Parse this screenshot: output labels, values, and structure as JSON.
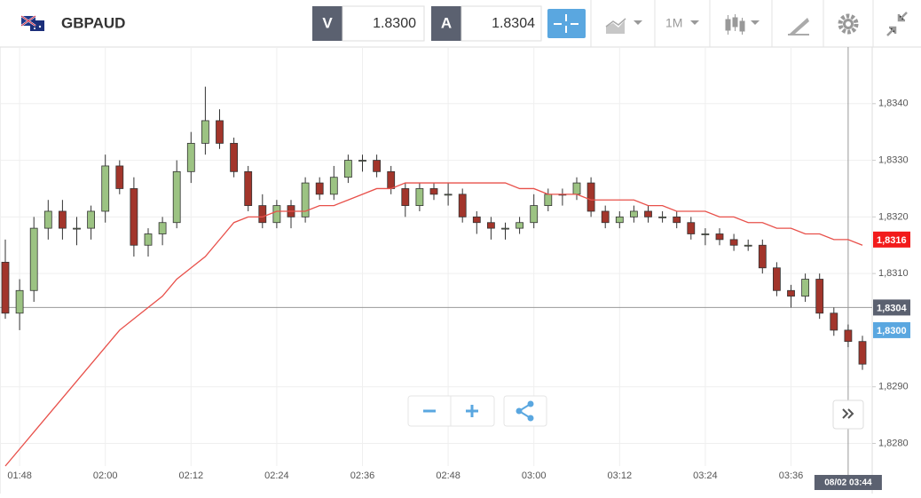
{
  "toolbar": {
    "symbol": "GBPAUD",
    "bid_label": "V",
    "bid": "1.8300",
    "ask_label": "A",
    "ask": "1.8304",
    "interval": "1M"
  },
  "chart_data": {
    "type": "candlestick",
    "categories": [
      null,
      "01:48",
      null,
      null,
      null,
      null,
      null,
      "02:00",
      null,
      null,
      null,
      null,
      null,
      "02:12",
      null,
      null,
      null,
      null,
      null,
      "02:24",
      null,
      null,
      null,
      null,
      null,
      "02:36",
      null,
      null,
      null,
      null,
      null,
      "02:48",
      null,
      null,
      null,
      null,
      null,
      "03:00",
      null,
      null,
      null,
      null,
      null,
      "03:12",
      null,
      null,
      null,
      null,
      null,
      "03:24",
      null,
      null,
      null,
      null,
      null,
      "03:36",
      null,
      null,
      null,
      null,
      null
    ],
    "open": [
      1.8312,
      1.8303,
      1.8307,
      1.8318,
      1.8321,
      1.8318,
      1.8318,
      1.8321,
      1.8329,
      1.8325,
      1.8315,
      1.8317,
      1.8319,
      1.8328,
      1.8333,
      1.8337,
      1.8333,
      1.8328,
      1.8322,
      1.8319,
      1.8322,
      1.832,
      1.8326,
      1.8324,
      1.8327,
      1.833,
      1.833,
      1.8328,
      1.8325,
      1.8322,
      1.8325,
      1.8324,
      1.8324,
      1.832,
      1.8319,
      1.8318,
      1.8318,
      1.8319,
      1.8322,
      1.8324,
      1.8324,
      1.8326,
      1.8321,
      1.8319,
      1.832,
      1.8321,
      1.832,
      1.832,
      1.8319,
      1.8317,
      1.8317,
      1.8316,
      1.8315,
      1.8315,
      1.8311,
      1.8307,
      1.8306,
      1.8309,
      1.8303,
      1.83,
      1.8298
    ],
    "high": [
      1.8316,
      1.8309,
      1.832,
      1.8323,
      1.8323,
      1.832,
      1.8322,
      1.8331,
      1.833,
      1.8327,
      1.8318,
      1.832,
      1.833,
      1.8335,
      1.8343,
      1.8339,
      1.8334,
      1.8329,
      1.8324,
      1.8323,
      1.8323,
      1.8327,
      1.8327,
      1.8329,
      1.8331,
      1.8331,
      1.8331,
      1.8329,
      1.8326,
      1.8326,
      1.8326,
      1.8326,
      1.8325,
      1.8321,
      1.832,
      1.8319,
      1.832,
      1.8324,
      1.8325,
      1.8325,
      1.8327,
      1.8327,
      1.8322,
      1.8321,
      1.8322,
      1.8322,
      1.8321,
      1.8321,
      1.832,
      1.8318,
      1.8318,
      1.8317,
      1.8316,
      1.8316,
      1.8312,
      1.8308,
      1.831,
      1.831,
      1.8304,
      1.8301,
      1.8299
    ],
    "low": [
      1.8302,
      1.83,
      1.8305,
      1.8316,
      1.8316,
      1.8315,
      1.8316,
      1.8319,
      1.8324,
      1.8313,
      1.8313,
      1.8315,
      1.8318,
      1.8326,
      1.8331,
      1.8332,
      1.8327,
      1.8321,
      1.8318,
      1.8318,
      1.8318,
      1.8319,
      1.8323,
      1.8323,
      1.8326,
      1.8328,
      1.8327,
      1.8324,
      1.832,
      1.8321,
      1.8323,
      1.8322,
      1.8319,
      1.8317,
      1.8316,
      1.8316,
      1.8317,
      1.8318,
      1.8321,
      1.8322,
      1.8323,
      1.832,
      1.8318,
      1.8318,
      1.8319,
      1.8319,
      1.8319,
      1.8318,
      1.8316,
      1.8315,
      1.8315,
      1.8314,
      1.8314,
      1.831,
      1.8306,
      1.8304,
      1.8305,
      1.8302,
      1.8299,
      1.8297,
      1.8293
    ],
    "close": [
      1.8303,
      1.8307,
      1.8318,
      1.8321,
      1.8318,
      1.8318,
      1.8321,
      1.8329,
      1.8325,
      1.8315,
      1.8317,
      1.8319,
      1.8328,
      1.8333,
      1.8337,
      1.8333,
      1.8328,
      1.8322,
      1.8319,
      1.8322,
      1.832,
      1.8326,
      1.8324,
      1.8327,
      1.833,
      1.833,
      1.8328,
      1.8325,
      1.8322,
      1.8325,
      1.8324,
      1.8324,
      1.832,
      1.8319,
      1.8318,
      1.8318,
      1.8319,
      1.8322,
      1.8324,
      1.8324,
      1.8326,
      1.8321,
      1.8319,
      1.832,
      1.8321,
      1.832,
      1.832,
      1.8319,
      1.8317,
      1.8317,
      1.8316,
      1.8315,
      1.8315,
      1.8311,
      1.8307,
      1.8306,
      1.8309,
      1.8303,
      1.83,
      1.8298,
      1.8294
    ],
    "up_color": "#9cc383",
    "down_color": "#a2352b",
    "series": [
      {
        "color": "#e8504a",
        "values": [
          1.8276,
          1.8279,
          1.8282,
          1.8285,
          1.8288,
          1.8291,
          1.8294,
          1.8297,
          1.83,
          1.8302,
          1.8304,
          1.8306,
          1.8309,
          1.8311,
          1.8313,
          1.8316,
          1.8319,
          1.832,
          1.832,
          1.8321,
          1.8321,
          1.8321,
          1.8322,
          1.8322,
          1.8323,
          1.8324,
          1.8325,
          1.8325,
          1.8326,
          1.8326,
          1.8326,
          1.8326,
          1.8326,
          1.8326,
          1.8326,
          1.8326,
          1.8325,
          1.8325,
          1.8324,
          1.8324,
          1.8324,
          1.8323,
          1.8323,
          1.8323,
          1.8323,
          1.8322,
          1.8322,
          1.8321,
          1.8321,
          1.8321,
          1.832,
          1.832,
          1.8319,
          1.8319,
          1.8318,
          1.8318,
          1.8317,
          1.8317,
          1.8316,
          1.8316,
          1.8315
        ]
      }
    ],
    "ylim": [
      1.8276,
      1.835
    ],
    "yticks": [
      {
        "value": 1.828,
        "label": "1,8280"
      },
      {
        "value": 1.829,
        "label": "1,8290"
      },
      {
        "value": 1.831,
        "label": "1,8310"
      },
      {
        "value": 1.832,
        "label": "1,8320"
      },
      {
        "value": 1.833,
        "label": "1,8330"
      },
      {
        "value": 1.834,
        "label": "1,8340"
      }
    ],
    "price_tags": [
      {
        "value": 1.8316,
        "label": "1,8316",
        "color": "#f21b1b"
      },
      {
        "value": 1.8304,
        "label": "1,8304",
        "color": "#5b6170"
      },
      {
        "value": 1.83,
        "label": "1,8300",
        "color": "#5aa7e0"
      }
    ],
    "crosshair_label": "08/02 03:44",
    "grid": true
  }
}
